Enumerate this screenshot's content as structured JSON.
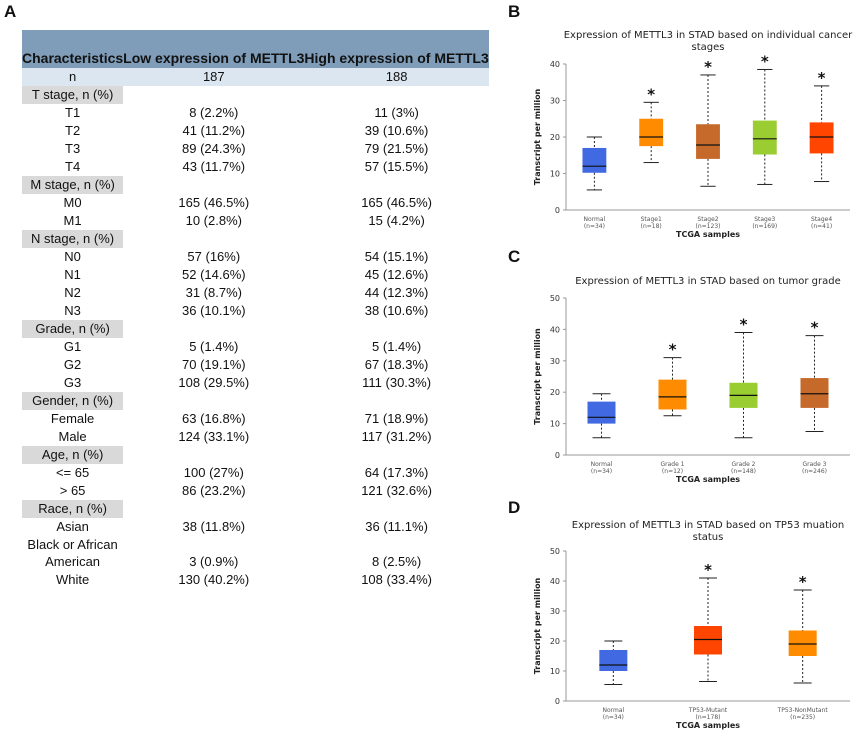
{
  "panels": {
    "a": "A",
    "b": "B",
    "c": "C",
    "d": "D"
  },
  "table": {
    "headers": [
      "Characteristics",
      "Low expression of METTL3",
      "High expression of METTL3"
    ],
    "n_row": {
      "label": "n",
      "low": "187",
      "high": "188"
    },
    "rows": [
      {
        "type": "section",
        "label": "T stage, n (%)"
      },
      {
        "type": "data",
        "label": "T1",
        "low": "8 (2.2%)",
        "high": "11 (3%)"
      },
      {
        "type": "data",
        "label": "T2",
        "low": "41 (11.2%)",
        "high": "39 (10.6%)"
      },
      {
        "type": "data",
        "label": "T3",
        "low": "89 (24.3%)",
        "high": "79 (21.5%)"
      },
      {
        "type": "data",
        "label": "T4",
        "low": "43 (11.7%)",
        "high": "57 (15.5%)"
      },
      {
        "type": "section",
        "label": "M stage, n (%)"
      },
      {
        "type": "data",
        "label": "M0",
        "low": "165 (46.5%)",
        "high": "165 (46.5%)"
      },
      {
        "type": "data",
        "label": "M1",
        "low": "10 (2.8%)",
        "high": "15 (4.2%)"
      },
      {
        "type": "section",
        "label": "N stage, n (%)"
      },
      {
        "type": "data",
        "label": "N0",
        "low": "57 (16%)",
        "high": "54 (15.1%)"
      },
      {
        "type": "data",
        "label": "N1",
        "low": "52 (14.6%)",
        "high": "45 (12.6%)"
      },
      {
        "type": "data",
        "label": "N2",
        "low": "31 (8.7%)",
        "high": "44 (12.3%)"
      },
      {
        "type": "data",
        "label": "N3",
        "low": "36 (10.1%)",
        "high": "38 (10.6%)"
      },
      {
        "type": "section",
        "label": "Grade, n (%)"
      },
      {
        "type": "data",
        "label": "G1",
        "low": "5 (1.4%)",
        "high": "5 (1.4%)"
      },
      {
        "type": "data",
        "label": "G2",
        "low": "70 (19.1%)",
        "high": "67 (18.3%)"
      },
      {
        "type": "data",
        "label": "G3",
        "low": "108 (29.5%)",
        "high": "111 (30.3%)"
      },
      {
        "type": "section",
        "label": "Gender, n (%)"
      },
      {
        "type": "data",
        "label": "Female",
        "low": "63 (16.8%)",
        "high": "71 (18.9%)"
      },
      {
        "type": "data",
        "label": "Male",
        "low": "124 (33.1%)",
        "high": "117 (31.2%)"
      },
      {
        "type": "section",
        "label": "Age, n (%)"
      },
      {
        "type": "data",
        "label": "<= 65",
        "low": "100 (27%)",
        "high": "64 (17.3%)"
      },
      {
        "type": "data",
        "label": "> 65",
        "low": "86 (23.2%)",
        "high": "121 (32.6%)"
      },
      {
        "type": "section",
        "label": "Race, n (%)"
      },
      {
        "type": "data",
        "label": "Asian",
        "low": "38 (11.8%)",
        "high": "36 (11.1%)"
      },
      {
        "type": "text",
        "label": "Black or African",
        "low": "",
        "high": ""
      },
      {
        "type": "data",
        "label": "American",
        "low": "3 (0.9%)",
        "high": "8 (2.5%)"
      },
      {
        "type": "data",
        "label": "White",
        "low": "130 (40.2%)",
        "high": "108 (33.4%)"
      }
    ]
  },
  "chart_data": [
    {
      "type": "boxplot",
      "title": "Expression of METTL3 in STAD based on individual cancer stages",
      "xlabel": "TCGA samples",
      "ylabel": "Transcript per million",
      "ylim": [
        0,
        40
      ],
      "yticks": [
        0,
        10,
        20,
        30,
        40
      ],
      "boxes": [
        {
          "name": "Normal",
          "n": "(n=34)",
          "min": 5.5,
          "q1": 10.2,
          "median": 12,
          "q3": 17,
          "max": 20,
          "color": "#4169e1",
          "sig": ""
        },
        {
          "name": "Stage1",
          "n": "(n=18)",
          "min": 13,
          "q1": 17.5,
          "median": 20,
          "q3": 25,
          "max": 29.5,
          "color": "#ff8c00",
          "sig": "*"
        },
        {
          "name": "Stage2",
          "n": "(n=123)",
          "min": 6.5,
          "q1": 14,
          "median": 17.8,
          "q3": 23.5,
          "max": 37,
          "color": "#c66a2c",
          "sig": "*"
        },
        {
          "name": "Stage3",
          "n": "(n=169)",
          "min": 7,
          "q1": 15.2,
          "median": 19.5,
          "q3": 24.5,
          "max": 38.5,
          "color": "#9acd32",
          "sig": "*"
        },
        {
          "name": "Stage4",
          "n": "(n=41)",
          "min": 7.8,
          "q1": 15.5,
          "median": 20,
          "q3": 24,
          "max": 34,
          "color": "#ff4500",
          "sig": "*"
        }
      ]
    },
    {
      "type": "boxplot",
      "title": "Expression of METTL3 in STAD based on tumor grade",
      "xlabel": "TCGA samples",
      "ylabel": "Transcript per million",
      "ylim": [
        0,
        50
      ],
      "yticks": [
        0,
        10,
        20,
        30,
        40,
        50
      ],
      "boxes": [
        {
          "name": "Normal",
          "n": "(n=34)",
          "min": 5.5,
          "q1": 10,
          "median": 12,
          "q3": 17,
          "max": 19.5,
          "color": "#4169e1",
          "sig": ""
        },
        {
          "name": "Grade 1",
          "n": "(n=12)",
          "min": 12.5,
          "q1": 14.5,
          "median": 18.5,
          "q3": 24,
          "max": 31,
          "color": "#ff8c00",
          "sig": "*"
        },
        {
          "name": "Grade 2",
          "n": "(n=148)",
          "min": 5.5,
          "q1": 15,
          "median": 19,
          "q3": 23,
          "max": 39,
          "color": "#9acd32",
          "sig": "*"
        },
        {
          "name": "Grade 3",
          "n": "(n=246)",
          "min": 7.5,
          "q1": 15,
          "median": 19.5,
          "q3": 24.5,
          "max": 38,
          "color": "#c66a2c",
          "sig": "*"
        }
      ]
    },
    {
      "type": "boxplot",
      "title": "Expression of METTL3 in STAD based on TP53 muation status",
      "xlabel": "TCGA samples",
      "ylabel": "Transcript per million",
      "ylim": [
        0,
        50
      ],
      "yticks": [
        0,
        10,
        20,
        30,
        40,
        50
      ],
      "boxes": [
        {
          "name": "Normal",
          "n": "(n=34)",
          "min": 5.5,
          "q1": 10,
          "median": 12,
          "q3": 17,
          "max": 20,
          "color": "#4169e1",
          "sig": ""
        },
        {
          "name": "TP53-Mutant",
          "n": "(n=178)",
          "min": 6.5,
          "q1": 15.5,
          "median": 20.5,
          "q3": 25,
          "max": 41,
          "color": "#ff4500",
          "sig": "*"
        },
        {
          "name": "TP53-NonMutant",
          "n": "(n=235)",
          "min": 6,
          "q1": 15,
          "median": 19,
          "q3": 23.5,
          "max": 37,
          "color": "#ff8c00",
          "sig": "*"
        }
      ]
    }
  ]
}
